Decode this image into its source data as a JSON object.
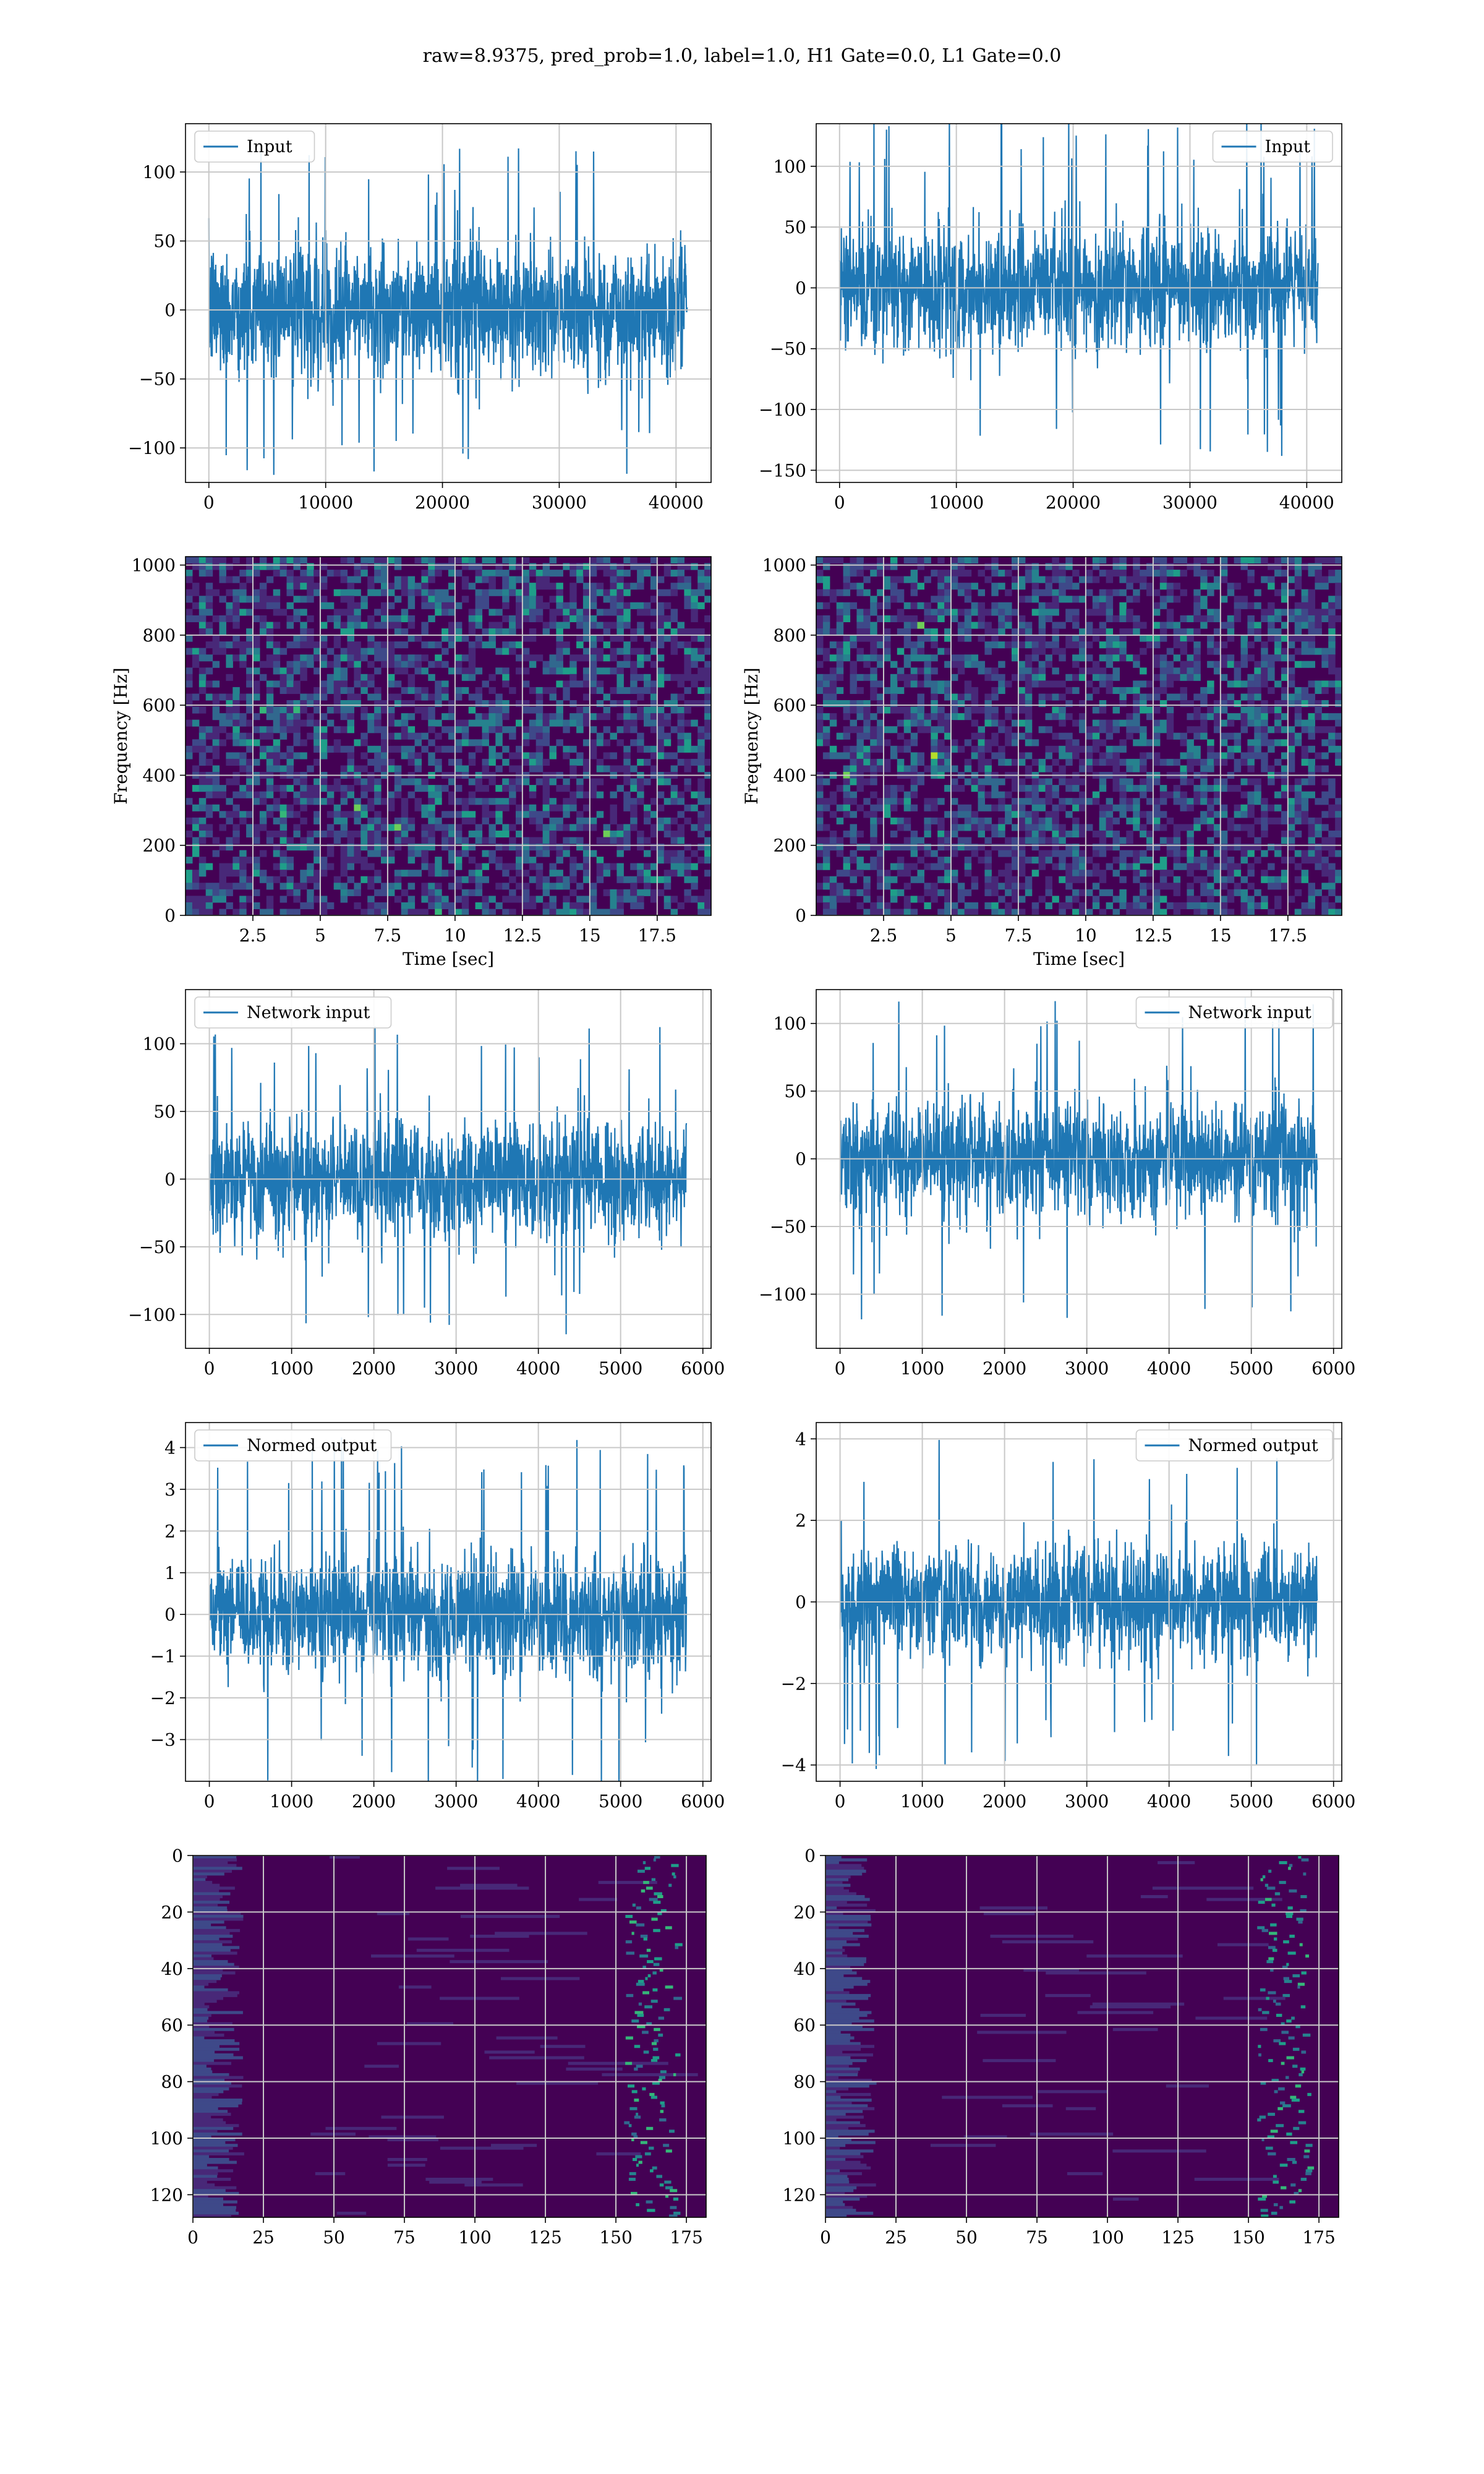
{
  "suptitle": "raw=8.9375, pred_prob=1.0, label=1.0, H1 Gate=0.0, L1 Gate=0.0",
  "colors": {
    "series": "#1f77b4",
    "grid": "#c8c8c8",
    "viridis": [
      "#440154",
      "#482878",
      "#3e4989",
      "#31688e",
      "#26828e",
      "#1f9e89",
      "#35b779",
      "#6ece58",
      "#b5de2b",
      "#fde725"
    ]
  },
  "chart_data": [
    {
      "id": "input-h1",
      "type": "line",
      "legend": "Input",
      "legend_loc": "upper-left",
      "n": 40960,
      "xlim": [
        -2000,
        43000
      ],
      "ylim": [
        -125,
        135
      ],
      "xticks": [
        0,
        10000,
        20000,
        30000,
        40000
      ],
      "yticks": [
        -100,
        -50,
        0,
        50,
        100
      ],
      "xlabel": "",
      "ylabel": "",
      "band_std": 24,
      "max_extent": 120,
      "grid": true
    },
    {
      "id": "input-l1",
      "type": "line",
      "legend": "Input",
      "legend_loc": "upper-right",
      "n": 40960,
      "xlim": [
        -2000,
        43000
      ],
      "ylim": [
        -160,
        135
      ],
      "xticks": [
        0,
        10000,
        20000,
        30000,
        40000
      ],
      "yticks": [
        -150,
        -100,
        -50,
        0,
        50,
        100
      ],
      "xlabel": "",
      "ylabel": "",
      "band_std": 25,
      "max_extent": 145,
      "grid": true
    },
    {
      "id": "spec-h1",
      "type": "heatmap",
      "kind": "spectrogram",
      "xlim": [
        0,
        19.5
      ],
      "ylim": [
        0,
        1024
      ],
      "xticks": [
        2.5,
        5.0,
        7.5,
        10.0,
        12.5,
        15.0,
        17.5
      ],
      "yticks": [
        0,
        200,
        400,
        600,
        800,
        1000
      ],
      "xlabel": "Time [sec]",
      "ylabel": "Frequency [Hz]",
      "grid": true
    },
    {
      "id": "spec-l1",
      "type": "heatmap",
      "kind": "spectrogram",
      "xlim": [
        0,
        19.5
      ],
      "ylim": [
        0,
        1024
      ],
      "xticks": [
        2.5,
        5.0,
        7.5,
        10.0,
        12.5,
        15.0,
        17.5
      ],
      "yticks": [
        0,
        200,
        400,
        600,
        800,
        1000
      ],
      "xlabel": "Time [sec]",
      "ylabel": "Frequency [Hz]",
      "grid": true
    },
    {
      "id": "netin-h1",
      "type": "line",
      "legend": "Network input",
      "legend_loc": "upper-left",
      "n": 5800,
      "xlim": [
        -290,
        6100
      ],
      "ylim": [
        -125,
        140
      ],
      "xticks": [
        0,
        1000,
        2000,
        3000,
        4000,
        5000,
        6000
      ],
      "yticks": [
        -100,
        -50,
        0,
        50,
        100
      ],
      "xlabel": "",
      "ylabel": "",
      "band_std": 22,
      "max_extent": 115,
      "grid": true
    },
    {
      "id": "netin-l1",
      "type": "line",
      "legend": "Network input",
      "legend_loc": "upper-right",
      "n": 5800,
      "xlim": [
        -290,
        6100
      ],
      "ylim": [
        -140,
        125
      ],
      "xticks": [
        0,
        1000,
        2000,
        3000,
        4000,
        5000,
        6000
      ],
      "yticks": [
        -100,
        -50,
        0,
        50,
        100
      ],
      "xlabel": "",
      "ylabel": "",
      "band_std": 21,
      "max_extent": 120,
      "grid": true
    },
    {
      "id": "normout-h1",
      "type": "line",
      "legend": "Normed output",
      "legend_loc": "upper-left",
      "n": 5800,
      "xlim": [
        -290,
        6100
      ],
      "ylim": [
        -4.0,
        4.6
      ],
      "xticks": [
        0,
        1000,
        2000,
        3000,
        4000,
        5000,
        6000
      ],
      "yticks": [
        -3,
        -2,
        -1,
        0,
        1,
        2,
        3,
        4
      ],
      "xlabel": "",
      "ylabel": "",
      "band_std": 0.7,
      "max_extent": 4.3,
      "grid": true
    },
    {
      "id": "normout-l1",
      "type": "line",
      "legend": "Normed output",
      "legend_loc": "upper-right",
      "n": 5800,
      "xlim": [
        -290,
        6100
      ],
      "ylim": [
        -4.4,
        4.4
      ],
      "xticks": [
        0,
        1000,
        2000,
        3000,
        4000,
        5000,
        6000
      ],
      "yticks": [
        -4,
        -2,
        0,
        2,
        4
      ],
      "xlabel": "",
      "ylabel": "",
      "band_std": 0.7,
      "max_extent": 4.1,
      "grid": true
    },
    {
      "id": "feat-h1",
      "type": "heatmap",
      "kind": "feature-map",
      "xlim": [
        0,
        182
      ],
      "ylim": [
        128,
        0
      ],
      "rows": 128,
      "cols": 182,
      "xticks": [
        0,
        25,
        50,
        75,
        100,
        125,
        150,
        175
      ],
      "yticks": [
        0,
        20,
        40,
        60,
        80,
        100,
        120
      ],
      "xlabel": "",
      "ylabel": "",
      "grid": true
    },
    {
      "id": "feat-l1",
      "type": "heatmap",
      "kind": "feature-map",
      "xlim": [
        0,
        182
      ],
      "ylim": [
        128,
        0
      ],
      "rows": 128,
      "cols": 182,
      "xticks": [
        0,
        25,
        50,
        75,
        100,
        125,
        150,
        175
      ],
      "yticks": [
        0,
        20,
        40,
        60,
        80,
        100,
        120
      ],
      "xlabel": "",
      "ylabel": "",
      "grid": true
    }
  ]
}
